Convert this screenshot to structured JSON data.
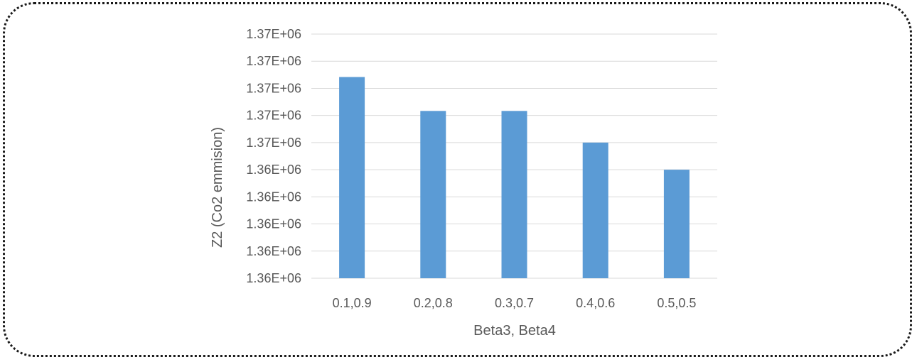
{
  "chart_data": {
    "type": "bar",
    "title": "",
    "xlabel": "Beta3, Beta4",
    "ylabel": "Z2 (Co2 emmision)",
    "categories": [
      "0.1,0.9",
      "0.2,0.8",
      "0.3,0.7",
      "0.4,0.6",
      "0.5,0.5"
    ],
    "series": [
      {
        "values": [
          1367450,
          1366700,
          1366700,
          1366000,
          1365400
        ]
      }
    ],
    "ylim": [
      1363000,
      1368400
    ],
    "y_ticks": [
      1363000,
      1363600,
      1364200,
      1364800,
      1365400,
      1366000,
      1366600,
      1367200,
      1367800,
      1368400
    ],
    "y_tick_labels": [
      "1.36E+06",
      "1.36E+06",
      "1.36E+06",
      "1.36E+06",
      "1.36E+06",
      "1.37E+06",
      "1.37E+06",
      "1.37E+06",
      "1.37E+06",
      "1.37E+06"
    ],
    "grid": true,
    "legend": "none",
    "bar_color": "#5b9bd5"
  }
}
